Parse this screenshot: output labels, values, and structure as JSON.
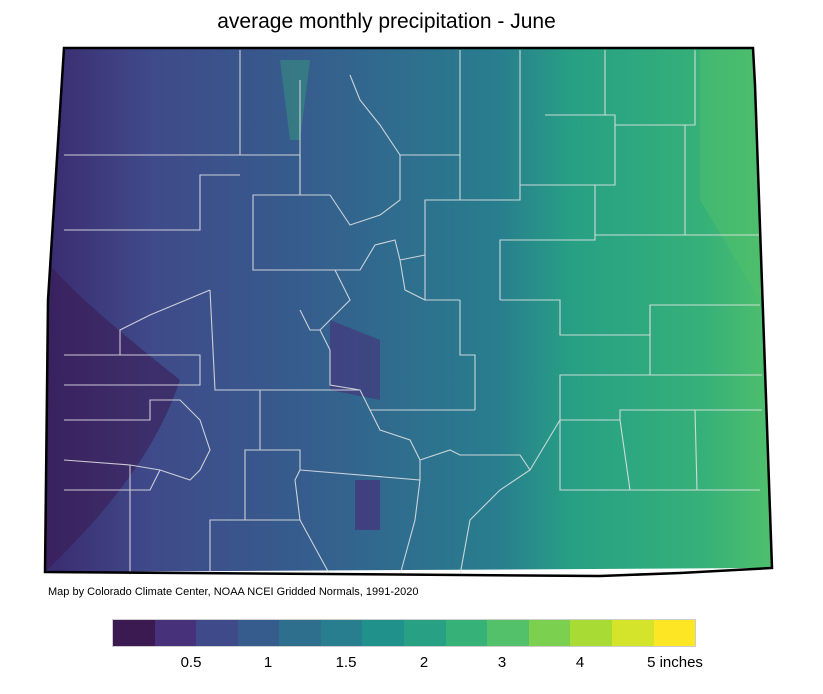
{
  "title": "average monthly precipitation - June",
  "credit": "Map by Colorado Climate Center, NOAA NCEI Gridded Normals, 1991-2020",
  "legend": {
    "colors": [
      "#3b1a52",
      "#47317a",
      "#3f4a8a",
      "#365c8d",
      "#2e6f8e",
      "#287e8e",
      "#21918c",
      "#27a084",
      "#36b178",
      "#52c16a",
      "#7bd04f",
      "#a8db34",
      "#d3e42b",
      "#fde725"
    ],
    "ticks": [
      "0.5",
      "1",
      "1.5",
      "2",
      "3",
      "4",
      "5 inches"
    ]
  }
}
